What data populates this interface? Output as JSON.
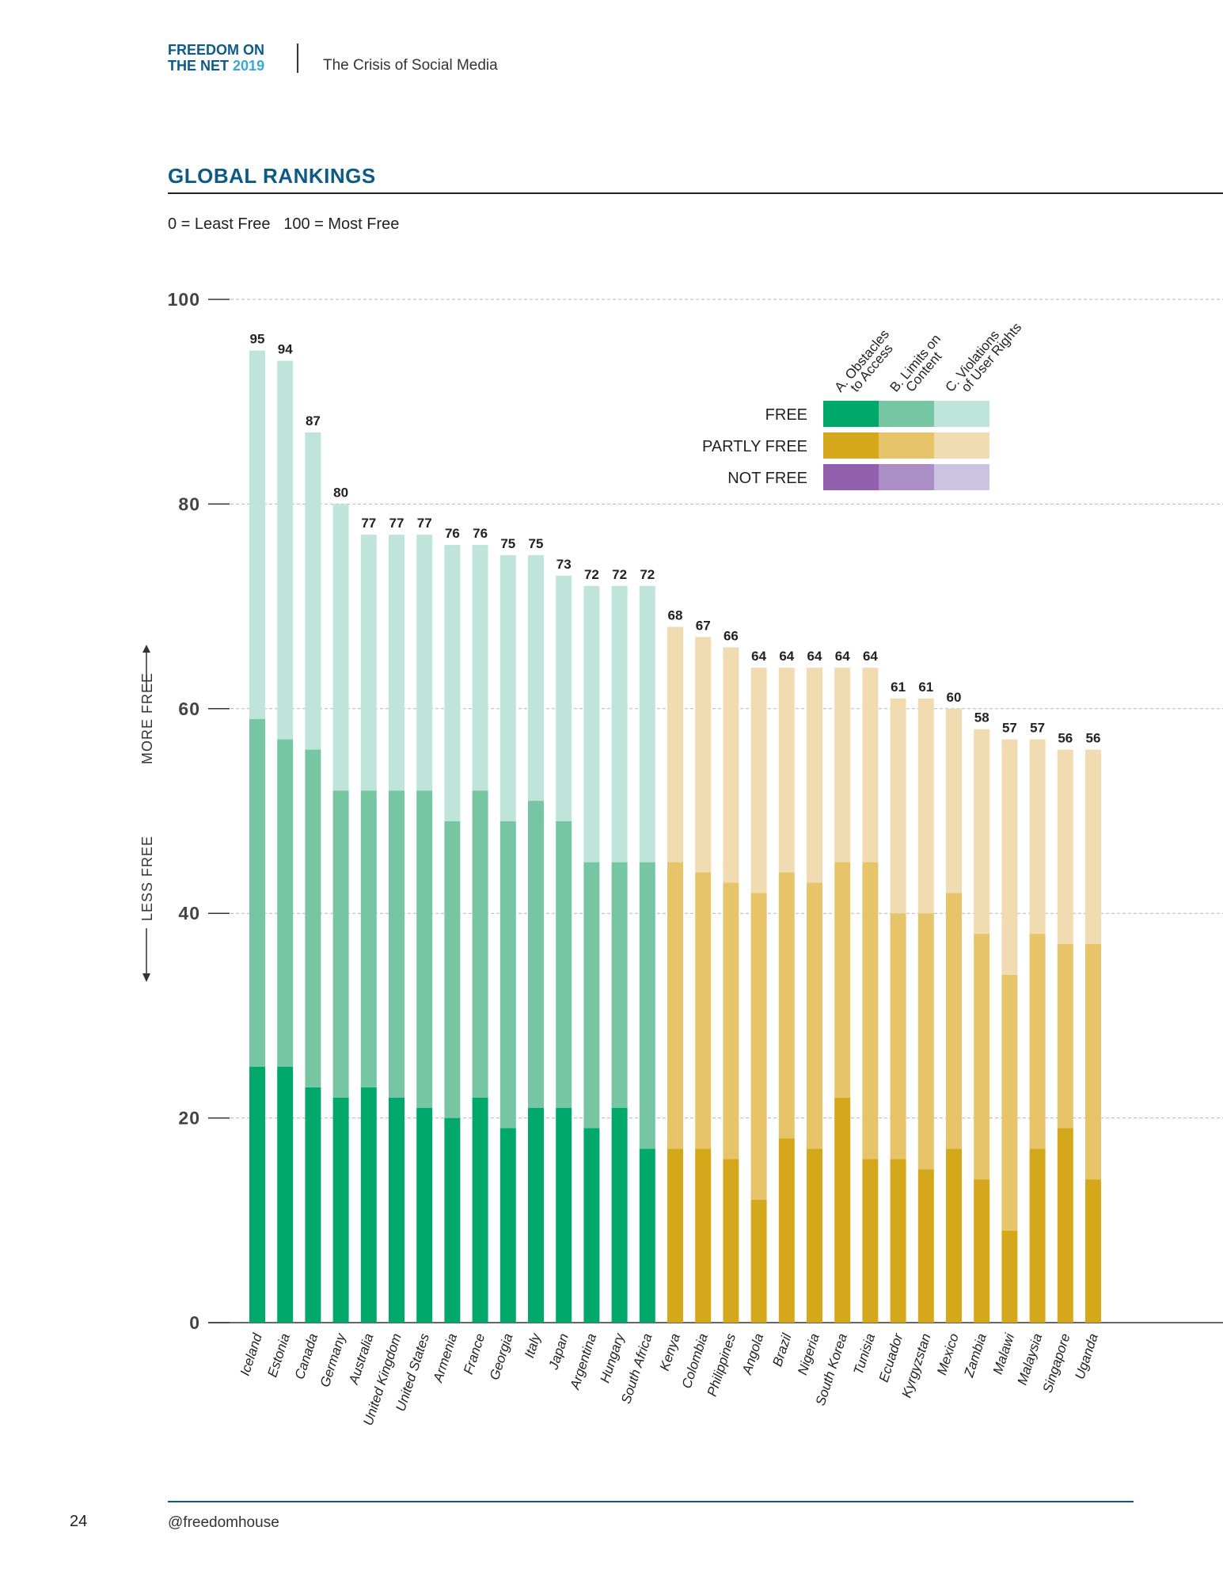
{
  "header": {
    "brand_line1": "FREEDOM ON",
    "brand_line2": "THE NET",
    "brand_year": "2019",
    "title": "The Crisis of Social Media"
  },
  "section_title": "GLOBAL RANKINGS",
  "scale_note": "0 = Least Free   100 = Most Free",
  "axis_side": {
    "more": "MORE FREE",
    "less": "LESS FREE"
  },
  "legend": {
    "columns": [
      "A. Obstacles\nto Access",
      "B. Limits on\nContent",
      "C. Violations\nof User Rights"
    ],
    "rows": [
      {
        "label": "FREE",
        "colors": [
          "#00a86b",
          "#76c6a4",
          "#bfe4da"
        ]
      },
      {
        "label": "PARTLY FREE",
        "colors": [
          "#d4a81a",
          "#e7c46a",
          "#f1dbb0"
        ]
      },
      {
        "label": "NOT FREE",
        "colors": [
          "#9360ad",
          "#ab8ec6",
          "#cac4e2"
        ]
      }
    ]
  },
  "chart_data": {
    "type": "bar",
    "stacked": true,
    "ylim": [
      0,
      100
    ],
    "yticks": [
      0,
      20,
      40,
      60,
      80,
      100
    ],
    "grid": true,
    "categories": [
      "Iceland",
      "Estonia",
      "Canada",
      "Germany",
      "Australia",
      "United Kingdom",
      "United States",
      "Armenia",
      "France",
      "Georgia",
      "Italy",
      "Japan",
      "Argentina",
      "Hungary",
      "South Africa",
      "Kenya",
      "Colombia",
      "Philippines",
      "Angola",
      "Brazil",
      "Nigeria",
      "South Korea",
      "Tunisia",
      "Ecuador",
      "Kyrgyzstan",
      "Mexico",
      "Zambia",
      "Malawi",
      "Malaysia",
      "Singapore",
      "Uganda"
    ],
    "status": [
      "FREE",
      "FREE",
      "FREE",
      "FREE",
      "FREE",
      "FREE",
      "FREE",
      "FREE",
      "FREE",
      "FREE",
      "FREE",
      "FREE",
      "FREE",
      "FREE",
      "FREE",
      "PARTLY FREE",
      "PARTLY FREE",
      "PARTLY FREE",
      "PARTLY FREE",
      "PARTLY FREE",
      "PARTLY FREE",
      "PARTLY FREE",
      "PARTLY FREE",
      "PARTLY FREE",
      "PARTLY FREE",
      "PARTLY FREE",
      "PARTLY FREE",
      "PARTLY FREE",
      "PARTLY FREE",
      "PARTLY FREE",
      "PARTLY FREE"
    ],
    "series": [
      {
        "name": "A. Obstacles to Access",
        "values": [
          25,
          25,
          23,
          22,
          23,
          22,
          21,
          20,
          22,
          19,
          21,
          21,
          19,
          21,
          17,
          17,
          17,
          16,
          12,
          18,
          17,
          22,
          16,
          16,
          15,
          17,
          14,
          9,
          17,
          19,
          14
        ]
      },
      {
        "name": "B. Limits on Content",
        "values": [
          34,
          32,
          33,
          30,
          29,
          30,
          31,
          29,
          30,
          30,
          30,
          28,
          26,
          24,
          28,
          28,
          27,
          27,
          30,
          26,
          26,
          23,
          29,
          24,
          25,
          25,
          24,
          25,
          21,
          18,
          23
        ]
      },
      {
        "name": "C. Violations of User Rights",
        "values": [
          36,
          37,
          31,
          28,
          25,
          25,
          25,
          27,
          24,
          26,
          24,
          24,
          27,
          27,
          27,
          23,
          23,
          23,
          22,
          20,
          21,
          19,
          19,
          21,
          21,
          18,
          20,
          23,
          19,
          19,
          19
        ]
      }
    ],
    "totals": [
      95,
      94,
      87,
      80,
      77,
      77,
      77,
      76,
      76,
      75,
      75,
      73,
      72,
      72,
      72,
      68,
      67,
      66,
      64,
      64,
      64,
      64,
      64,
      61,
      61,
      60,
      58,
      57,
      57,
      56,
      56
    ]
  },
  "footer": {
    "page_number": "24",
    "handle": "@freedomhouse"
  }
}
